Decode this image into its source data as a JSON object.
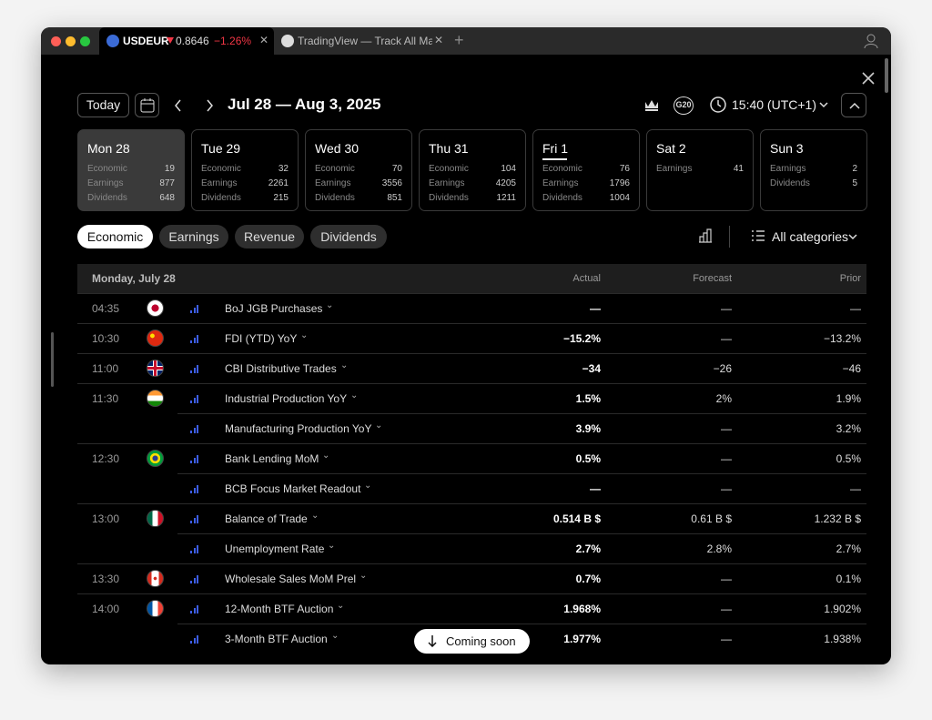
{
  "tabs": [
    {
      "title": "USDEUR",
      "price": "0.8646",
      "change": "−1.26%"
    },
    {
      "title": "TradingView — Track All Mar"
    }
  ],
  "header": {
    "today": "Today",
    "range": "Jul 28 — Aug 3, 2025",
    "g20": "G20",
    "time": "15:40 (UTC+1)"
  },
  "days": [
    {
      "label": "Mon 28",
      "rows": [
        [
          "Economic",
          19
        ],
        [
          "Earnings",
          877
        ],
        [
          "Dividends",
          648
        ]
      ]
    },
    {
      "label": "Tue 29",
      "rows": [
        [
          "Economic",
          32
        ],
        [
          "Earnings",
          2261
        ],
        [
          "Dividends",
          215
        ]
      ]
    },
    {
      "label": "Wed 30",
      "rows": [
        [
          "Economic",
          70
        ],
        [
          "Earnings",
          3556
        ],
        [
          "Dividends",
          851
        ]
      ]
    },
    {
      "label": "Thu 31",
      "rows": [
        [
          "Economic",
          104
        ],
        [
          "Earnings",
          4205
        ],
        [
          "Dividends",
          1211
        ]
      ]
    },
    {
      "label": "Fri 1",
      "rows": [
        [
          "Economic",
          76
        ],
        [
          "Earnings",
          1796
        ],
        [
          "Dividends",
          1004
        ]
      ]
    },
    {
      "label": "Sat 2",
      "rows": [
        [
          "Earnings",
          41
        ]
      ]
    },
    {
      "label": "Sun 3",
      "rows": [
        [
          "Earnings",
          2
        ],
        [
          "Dividends",
          5
        ]
      ]
    }
  ],
  "filters": [
    "Economic",
    "Earnings",
    "Revenue",
    "Dividends"
  ],
  "categories": "All categories",
  "table": {
    "date": "Monday, July 28",
    "columns": [
      "Actual",
      "Forecast",
      "Prior"
    ],
    "rows": [
      [
        "04:35",
        "BoJ JGB Purchases",
        "—",
        "—",
        "—"
      ],
      [
        "10:30",
        "FDI (YTD) YoY",
        "−15.2%",
        "—",
        "−13.2%"
      ],
      [
        "11:00",
        "CBI Distributive Trades",
        "−34",
        "−26",
        "−46"
      ],
      [
        "11:30",
        "Industrial Production YoY",
        "1.5%",
        "2%",
        "1.9%"
      ],
      [
        null,
        "Manufacturing Production YoY",
        "3.9%",
        "—",
        "3.2%"
      ],
      [
        "12:30",
        "Bank Lending MoM",
        "0.5%",
        "—",
        "0.5%"
      ],
      [
        null,
        "BCB Focus Market Readout",
        "—",
        "—",
        "—"
      ],
      [
        "13:00",
        "Balance of Trade",
        "0.514 B $",
        "0.61 B $",
        "1.232 B $"
      ],
      [
        null,
        "Unemployment Rate",
        "2.7%",
        "2.8%",
        "2.7%"
      ],
      [
        "13:30",
        "Wholesale Sales MoM Prel",
        "0.7%",
        "—",
        "0.1%"
      ],
      [
        "14:00",
        "12-Month BTF Auction",
        "1.968%",
        "—",
        "1.902%"
      ],
      [
        null,
        "3-Month BTF Auction",
        "1.977%",
        "—",
        "1.938%"
      ]
    ]
  },
  "toast": "Coming soon"
}
